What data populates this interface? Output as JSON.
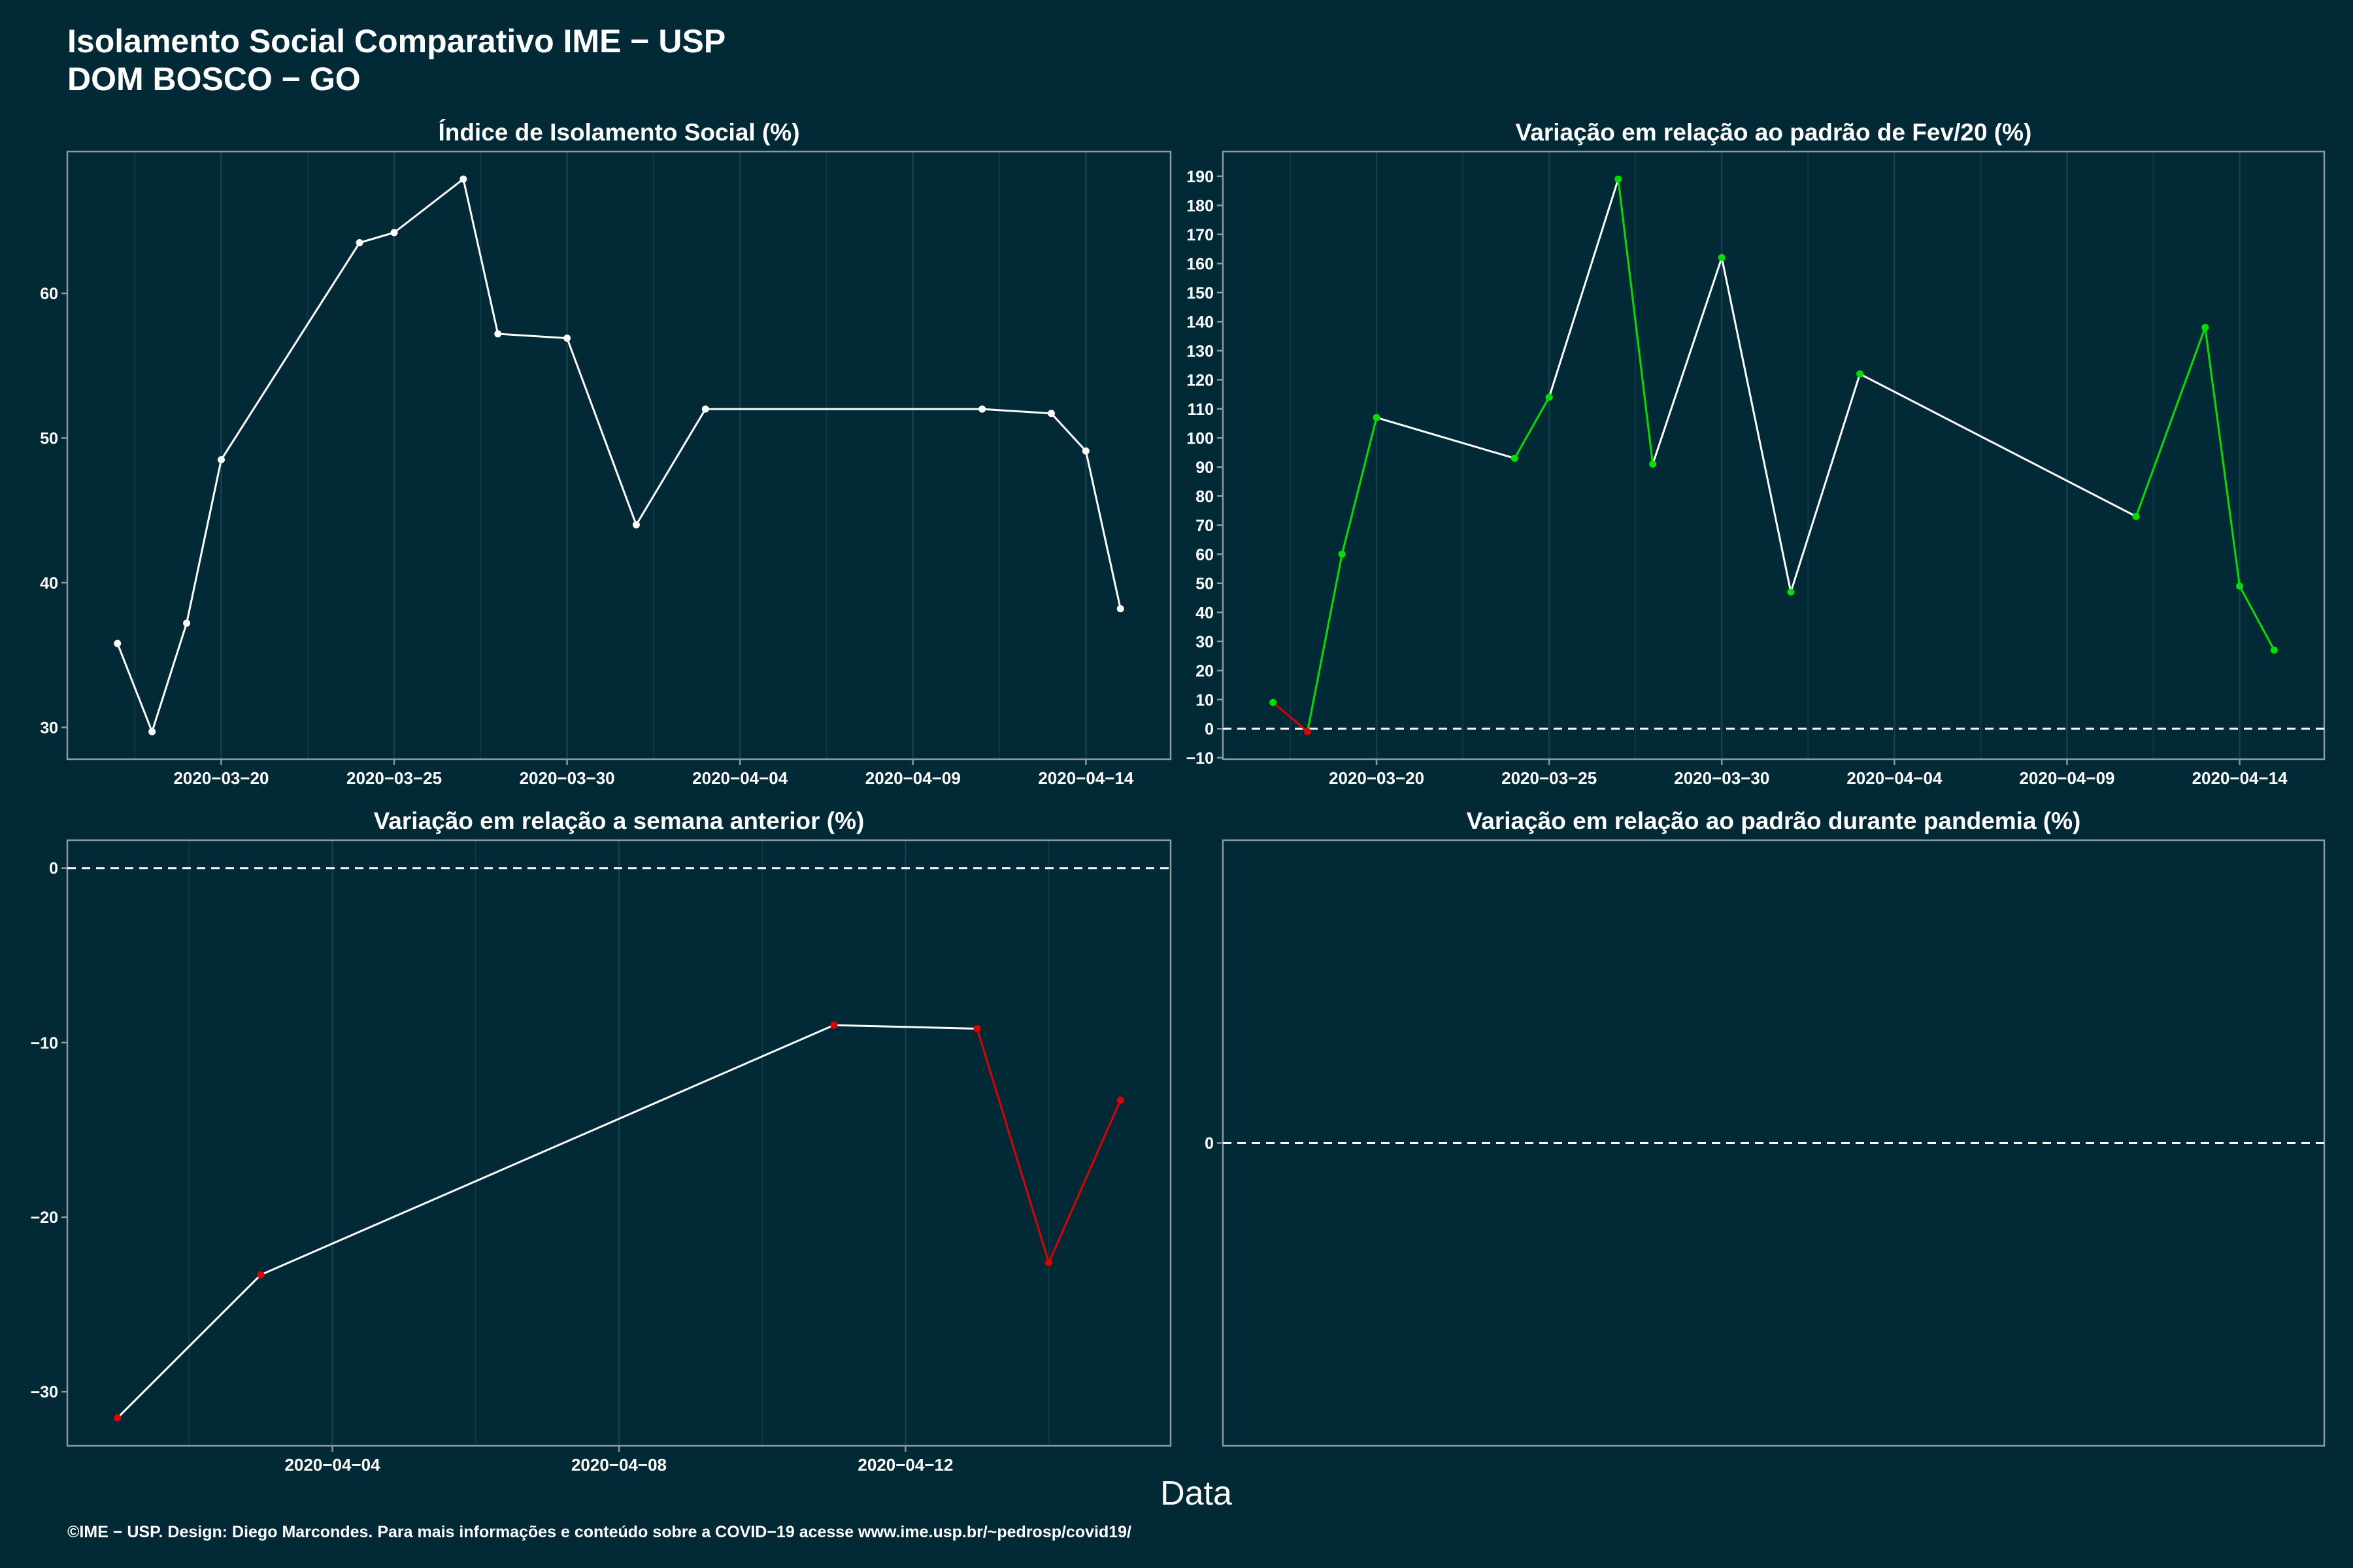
{
  "title": "Isolamento Social Comparativo IME − USP",
  "subtitle": "DOM BOSCO − GO",
  "xlabel": "Data",
  "caption": "©IME − USP. Design: Diego Marcondes. Para mais informações e conteúdo sobre a COVID−19 acesse www.ime.usp.br/~pedrosp/covid19/",
  "chart_data": [
    {
      "type": "line",
      "title": "Índice de Isolamento Social (%)",
      "x": [
        "2020-03-17",
        "2020-03-18",
        "2020-03-19",
        "2020-03-20",
        "2020-03-24",
        "2020-03-25",
        "2020-03-27",
        "2020-03-28",
        "2020-03-30",
        "2020-04-01",
        "2020-04-03",
        "2020-04-11",
        "2020-04-13",
        "2020-04-14",
        "2020-04-15"
      ],
      "values": [
        35.8,
        29.7,
        37.2,
        48.5,
        63.5,
        64.2,
        67.9,
        57.2,
        56.9,
        44.0,
        52.0,
        52.0,
        51.7,
        49.1,
        38.2
      ],
      "point_colors": [
        "#ffffff",
        "#ffffff",
        "#ffffff",
        "#ffffff",
        "#ffffff",
        "#ffffff",
        "#ffffff",
        "#ffffff",
        "#ffffff",
        "#ffffff",
        "#ffffff",
        "#ffffff",
        "#ffffff",
        "#ffffff",
        "#ffffff"
      ],
      "segment_colors": [
        "#ffffff",
        "#ffffff",
        "#ffffff",
        "#ffffff",
        "#ffffff",
        "#ffffff",
        "#ffffff",
        "#ffffff",
        "#ffffff",
        "#ffffff",
        "#ffffff",
        "#ffffff",
        "#ffffff",
        "#ffffff"
      ],
      "x_ticks": [
        "2020−03−20",
        "2020−03−25",
        "2020−03−30",
        "2020−04−04",
        "2020−04−09",
        "2020−04−14"
      ],
      "y_ticks": [
        "30",
        "40",
        "50",
        "60"
      ],
      "ylim": [
        27.8,
        69.8
      ],
      "reference_line": null,
      "grid": "vertical"
    },
    {
      "type": "line",
      "title": "Variação em relação ao padrão de Fev/20 (%)",
      "x": [
        "2020-03-17",
        "2020-03-18",
        "2020-03-19",
        "2020-03-20",
        "2020-03-24",
        "2020-03-25",
        "2020-03-27",
        "2020-03-28",
        "2020-03-30",
        "2020-04-01",
        "2020-04-03",
        "2020-04-11",
        "2020-04-13",
        "2020-04-14",
        "2020-04-15"
      ],
      "values": [
        9,
        -1,
        60,
        107,
        93,
        114,
        189,
        91,
        162,
        47,
        122,
        73,
        138,
        49,
        27
      ],
      "point_colors": [
        "#00e000",
        "#e00000",
        "#00e000",
        "#00e000",
        "#00e000",
        "#00e000",
        "#00e000",
        "#00e000",
        "#00e000",
        "#00e000",
        "#00e000",
        "#00e000",
        "#00e000",
        "#00e000",
        "#00e000"
      ],
      "segment_colors": [
        "#e00000",
        "#00e000",
        "#00e000",
        "#ffffff",
        "#00e000",
        "#ffffff",
        "#00e000",
        "#ffffff",
        "#ffffff",
        "#ffffff",
        "#ffffff",
        "#00e000",
        "#00e000",
        "#00e000"
      ],
      "x_ticks": [
        "2020−03−20",
        "2020−03−25",
        "2020−03−30",
        "2020−04−04",
        "2020−04−09",
        "2020−04−14"
      ],
      "y_ticks": [
        "−10",
        "0",
        "10",
        "20",
        "30",
        "40",
        "50",
        "60",
        "70",
        "80",
        "90",
        "100",
        "110",
        "120",
        "130",
        "140",
        "150",
        "160",
        "170",
        "180",
        "190"
      ],
      "ylim": [
        -10.5,
        198.5
      ],
      "reference_line": 0,
      "grid": "vertical"
    },
    {
      "type": "line",
      "title": "Variação em relação a semana anterior (%)",
      "x": [
        "2020-04-01",
        "2020-04-03",
        "2020-04-11",
        "2020-04-13",
        "2020-04-14",
        "2020-04-15"
      ],
      "values": [
        -31.5,
        -23.3,
        -9.0,
        -9.2,
        -22.6,
        -13.3
      ],
      "point_colors": [
        "#e00000",
        "#e00000",
        "#e00000",
        "#e00000",
        "#e00000",
        "#e00000"
      ],
      "segment_colors": [
        "#ffffff",
        "#ffffff",
        "#ffffff",
        "#e00000",
        "#e00000"
      ],
      "x_ticks": [
        "2020−04−04",
        "2020−04−08",
        "2020−04−12"
      ],
      "y_ticks": [
        "−30",
        "−20",
        "−10",
        "0"
      ],
      "ylim": [
        -33.1,
        1.6
      ],
      "reference_line": 0,
      "grid": "vertical"
    },
    {
      "type": "line",
      "title": "Variação em relação ao padrão durante pandemia (%)",
      "x": [],
      "values": [],
      "point_colors": [],
      "segment_colors": [],
      "x_ticks": [],
      "y_ticks": [
        "0"
      ],
      "ylim": [
        -1,
        1
      ],
      "reference_line": 0,
      "grid": "none"
    }
  ]
}
